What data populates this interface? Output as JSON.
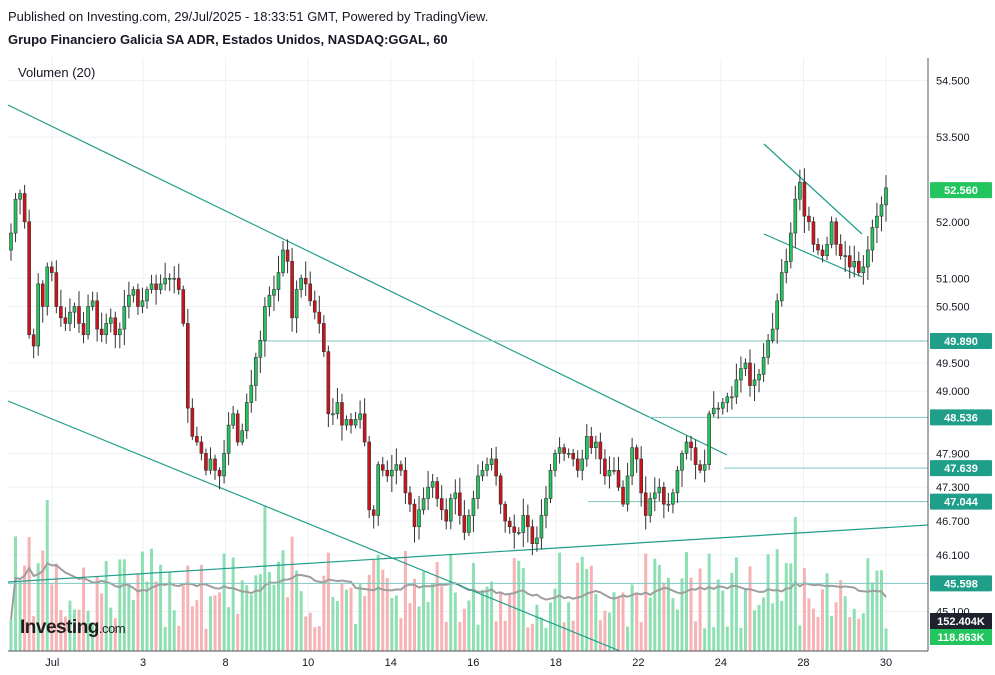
{
  "header": {
    "published": "Published on Investing.com, 29/Jul/2025 - 18:33:51 GMT, Powered by TradingView.",
    "symbol": "Grupo Financiero Galicia SA ADR, Estados Unidos, NASDAQ:GGAL, 60"
  },
  "volume_label": "Volumen (20)",
  "logo": {
    "main": "Investing",
    "suffix": ".com"
  },
  "colors": {
    "up": "#22c55e",
    "down": "#d0121b",
    "vol_up": "#8ee0b4",
    "vol_down": "#f6b3b5",
    "trendline": "#1f9e89",
    "hline": "#7fc8c0",
    "tag": "#1f9e89",
    "price_tag": "#22c55e",
    "vol_tag": "#1e222d",
    "vol_ma": "#9e9e9e"
  },
  "chart_data": {
    "type": "candlestick",
    "interval": "60",
    "y_axis_ticks": [
      "54.500",
      "53.500",
      "52.000",
      "51.000",
      "50.500",
      "49.500",
      "49.000",
      "47.900",
      "47.300",
      "46.700",
      "46.100",
      "45.100"
    ],
    "y_range": [
      44.4,
      54.9
    ],
    "x_axis_ticks": [
      "Jul",
      "3",
      "8",
      "10",
      "14",
      "16",
      "18",
      "22",
      "24",
      "28",
      "30"
    ],
    "price_tags": [
      {
        "label": "52.560",
        "value": 52.56,
        "kind": "last"
      },
      {
        "label": "49.890",
        "value": 49.89,
        "kind": "level"
      },
      {
        "label": "48.536",
        "value": 48.536,
        "kind": "level"
      },
      {
        "label": "47.639",
        "value": 47.639,
        "kind": "level"
      },
      {
        "label": "47.044",
        "value": 47.044,
        "kind": "level"
      },
      {
        "label": "45.598",
        "value": 45.598,
        "kind": "level"
      }
    ],
    "volume_tags": [
      {
        "label": "152.404K",
        "kind": "ma"
      },
      {
        "label": "118.863K",
        "kind": "volume"
      }
    ],
    "closes": [
      51.8,
      52.4,
      52.5,
      52.0,
      50.0,
      49.8,
      50.9,
      50.5,
      51.2,
      51.1,
      50.5,
      50.3,
      50.2,
      50.4,
      50.5,
      50.2,
      50.0,
      50.5,
      50.6,
      50.1,
      50.0,
      50.2,
      50.3,
      50.0,
      50.1,
      50.5,
      50.7,
      50.8,
      50.5,
      50.6,
      50.8,
      50.9,
      50.8,
      50.9,
      51.0,
      51.0,
      51.0,
      50.8,
      50.2,
      48.7,
      48.2,
      48.1,
      47.9,
      47.6,
      47.8,
      47.6,
      47.5,
      47.9,
      48.4,
      48.6,
      48.1,
      48.3,
      48.8,
      49.1,
      49.6,
      49.9,
      50.5,
      50.7,
      50.8,
      51.1,
      51.5,
      51.3,
      50.3,
      50.8,
      51.0,
      50.9,
      50.6,
      50.4,
      50.2,
      49.7,
      48.6,
      48.6,
      48.8,
      48.4,
      48.5,
      48.4,
      48.5,
      48.6,
      48.1,
      46.9,
      46.8,
      47.7,
      47.6,
      47.5,
      47.6,
      47.7,
      47.6,
      47.2,
      47.0,
      46.6,
      46.9,
      47.1,
      47.3,
      47.4,
      47.1,
      46.9,
      46.7,
      47.1,
      47.2,
      46.8,
      46.5,
      46.8,
      47.1,
      47.5,
      47.6,
      47.7,
      47.8,
      47.5,
      47.0,
      46.7,
      46.6,
      46.5,
      46.5,
      46.8,
      46.6,
      46.3,
      46.4,
      46.8,
      47.1,
      47.6,
      47.9,
      48.0,
      47.9,
      47.9,
      47.8,
      47.6,
      47.8,
      48.2,
      48.0,
      48.1,
      47.8,
      47.5,
      47.6,
      47.6,
      47.3,
      47.0,
      47.5,
      48.0,
      47.8,
      47.2,
      46.8,
      47.1,
      47.2,
      47.3,
      47.0,
      47.0,
      47.2,
      47.6,
      47.9,
      48.1,
      48.0,
      47.7,
      47.6,
      47.7,
      48.6,
      48.7,
      48.7,
      48.8,
      48.9,
      48.9,
      49.2,
      49.4,
      49.5,
      49.1,
      49.2,
      49.3,
      49.6,
      49.9,
      50.1,
      50.6,
      51.1,
      51.3,
      51.8,
      52.4,
      52.7,
      52.1,
      52.0,
      51.6,
      51.5,
      51.4,
      51.6,
      52.0,
      51.6,
      51.4,
      51.4,
      51.2,
      51.3,
      51.1,
      51.2,
      51.5,
      51.9,
      52.1,
      52.3,
      52.6
    ]
  }
}
